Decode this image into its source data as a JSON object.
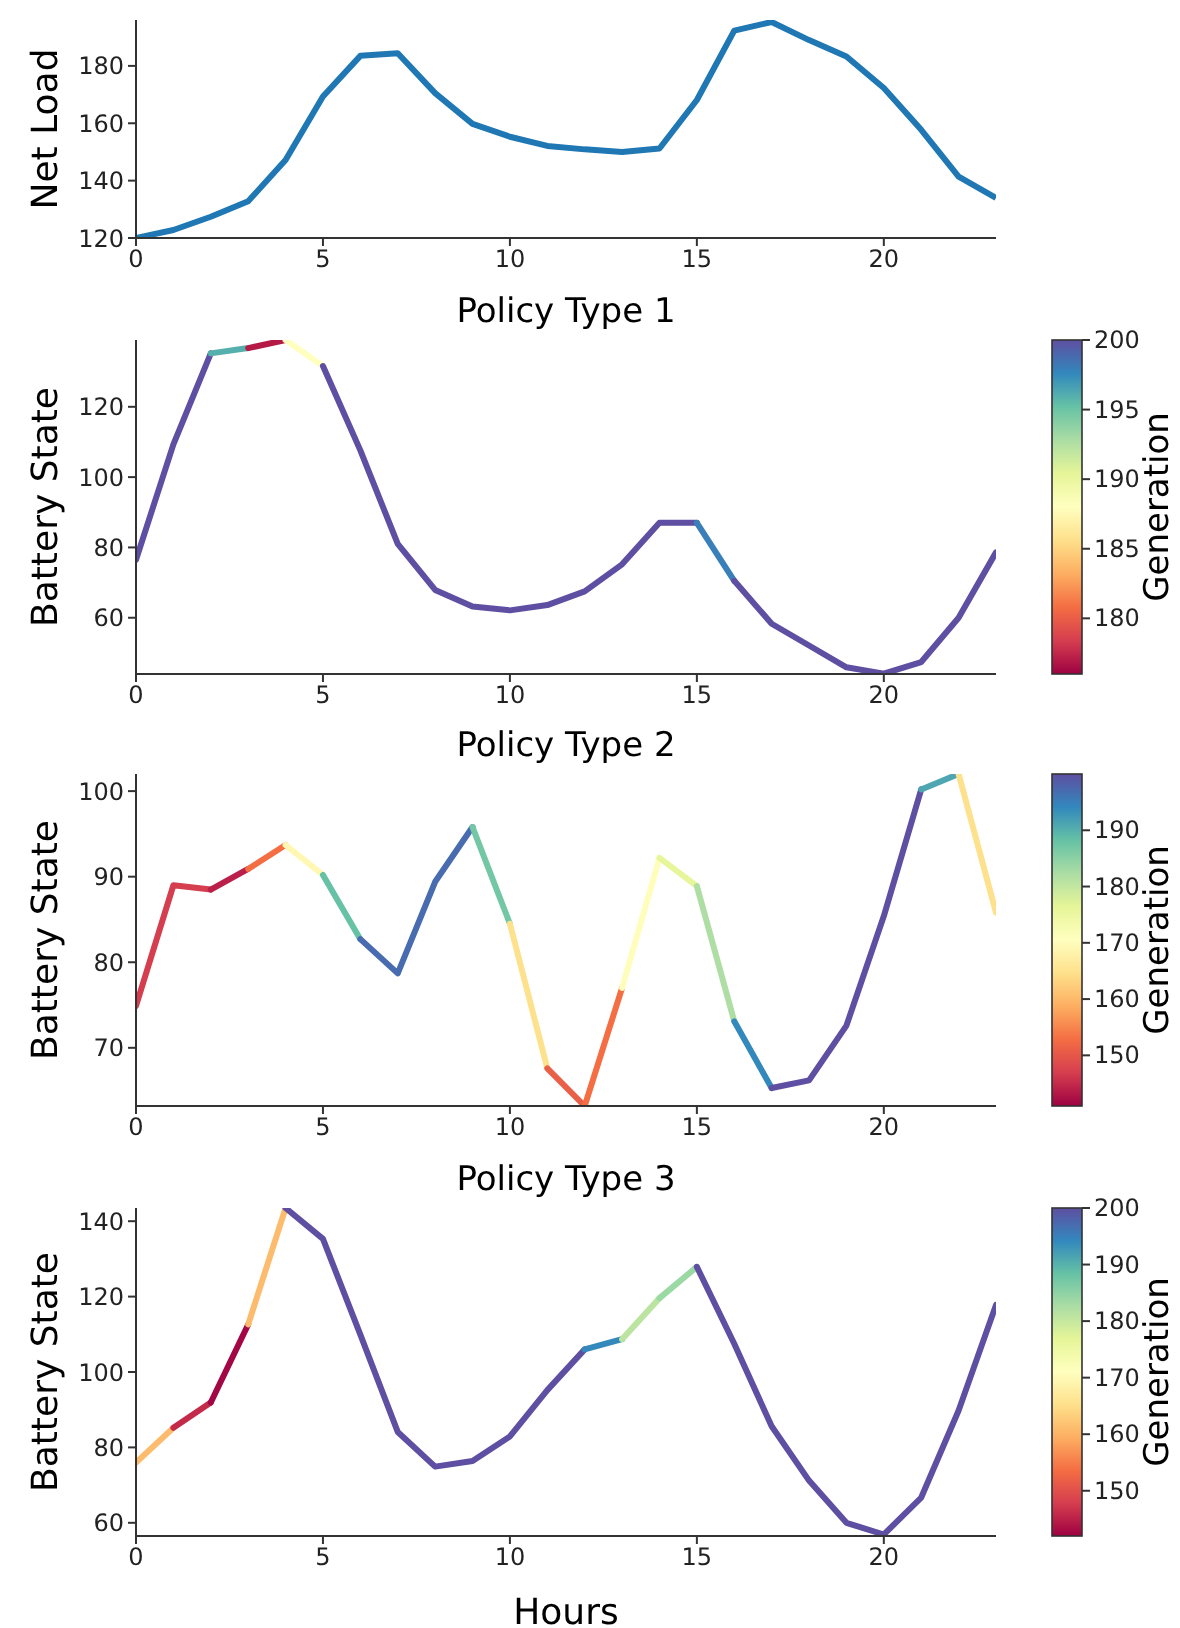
{
  "chart_data": [
    {
      "type": "line",
      "ylabel": "Net Load",
      "x": [
        0,
        1,
        2,
        3,
        4,
        5,
        6,
        7,
        8,
        9,
        10,
        11,
        12,
        13,
        14,
        15,
        16,
        17,
        18,
        19,
        20,
        21,
        22,
        23
      ],
      "xlim": [
        0,
        23
      ],
      "xticks": [
        0,
        5,
        10,
        15,
        20
      ],
      "ylim": [
        120,
        196
      ],
      "yticks": [
        120,
        140,
        160,
        180
      ],
      "marker": "none",
      "line_style": "solid",
      "series": [
        {
          "color": "#1f77b4",
          "values": [
            120,
            122.8,
            127.4,
            132.8,
            147.2,
            169.3,
            183.5,
            184.4,
            170.5,
            159.8,
            155.3,
            152.1,
            150.9,
            150,
            151.2,
            168.1,
            192.3,
            195.3,
            189,
            183.3,
            172.3,
            157.7,
            141.4,
            134
          ]
        }
      ]
    },
    {
      "type": "line",
      "title": "Policy Type 1",
      "ylabel": "Battery State",
      "clabel": "Generation",
      "xlim": [
        0,
        23
      ],
      "xticks": [
        0,
        5,
        10,
        15,
        20
      ],
      "ylim": [
        44,
        139
      ],
      "yticks": [
        60,
        80,
        100,
        120
      ],
      "clim": [
        176,
        200
      ],
      "cticks": [
        180,
        185,
        190,
        195,
        200
      ],
      "marker": "none",
      "line_style": "solid",
      "series": [
        {
          "color": "#5e4fa2",
          "x": [
            0,
            1,
            2
          ],
          "values": [
            76.5,
            109.3,
            135.2
          ]
        },
        {
          "color": "#55afad",
          "x": [
            2,
            3
          ],
          "values": [
            135.2,
            136.7
          ]
        },
        {
          "color": "#b51a47",
          "x": [
            3,
            4
          ],
          "values": [
            136.7,
            139
          ]
        },
        {
          "color": "#ffffbf",
          "x": [
            4,
            5
          ],
          "values": [
            139,
            131.6
          ]
        },
        {
          "color": "#5e4fa2",
          "x": [
            5,
            6,
            7,
            8,
            9,
            10,
            11,
            12,
            13,
            14,
            15
          ],
          "values": [
            131.6,
            107.6,
            81,
            67.9,
            63.2,
            62.1,
            63.6,
            67.5,
            75.2,
            87,
            87
          ]
        },
        {
          "color": "#397fb9",
          "x": [
            15,
            16
          ],
          "values": [
            87,
            70.5
          ]
        },
        {
          "color": "#5e4fa2",
          "x": [
            16,
            17,
            18,
            19,
            20,
            21,
            22,
            23
          ],
          "values": [
            70.5,
            58.3,
            52.1,
            45.9,
            44.1,
            47.4,
            60,
            78.6
          ]
        }
      ]
    },
    {
      "type": "line",
      "title": "Policy Type 2",
      "ylabel": "Battery State",
      "clabel": "Generation",
      "xlim": [
        0,
        23
      ],
      "xticks": [
        0,
        5,
        10,
        15,
        20
      ],
      "ylim": [
        63.2,
        102
      ],
      "yticks": [
        70,
        80,
        90,
        100
      ],
      "clim": [
        141,
        200
      ],
      "cticks": [
        150,
        160,
        170,
        180,
        190
      ],
      "marker": "none",
      "line_style": "solid",
      "series": [
        {
          "color": "#d53e4f",
          "x": [
            0,
            1,
            2
          ],
          "values": [
            74.9,
            89,
            88.5
          ]
        },
        {
          "color": "#ba2049",
          "x": [
            2,
            3
          ],
          "values": [
            88.5,
            90.9
          ]
        },
        {
          "color": "#f46d43",
          "x": [
            3,
            4
          ],
          "values": [
            90.9,
            93.7
          ]
        },
        {
          "color": "#fff7b2",
          "x": [
            4,
            5
          ],
          "values": [
            93.7,
            90.2
          ]
        },
        {
          "color": "#67c2a5",
          "x": [
            5,
            6
          ],
          "values": [
            90.2,
            82.7
          ]
        },
        {
          "color": "#486caf",
          "x": [
            6,
            7,
            8,
            9
          ],
          "values": [
            82.7,
            78.7,
            89.4,
            95.8
          ]
        },
        {
          "color": "#74c7a5",
          "x": [
            9,
            10
          ],
          "values": [
            95.8,
            84.5
          ]
        },
        {
          "color": "#fee18d",
          "x": [
            10,
            11
          ],
          "values": [
            84.5,
            67.6
          ]
        },
        {
          "color": "#ea5f47",
          "x": [
            11,
            12
          ],
          "values": [
            67.6,
            63.2
          ]
        },
        {
          "color": "#f46d43",
          "x": [
            12,
            13
          ],
          "values": [
            63.2,
            77
          ]
        },
        {
          "color": "#fffdbc",
          "x": [
            13,
            14
          ],
          "values": [
            77,
            92.2
          ]
        },
        {
          "color": "#e8f69b",
          "x": [
            14,
            15
          ],
          "values": [
            92.2,
            88.9
          ]
        },
        {
          "color": "#aedea3",
          "x": [
            15,
            16
          ],
          "values": [
            88.9,
            73.1
          ]
        },
        {
          "color": "#3489bc",
          "x": [
            16,
            17
          ],
          "values": [
            73.1,
            65.3
          ]
        },
        {
          "color": "#5e4fa2",
          "x": [
            17,
            18,
            19,
            20,
            21
          ],
          "values": [
            65.3,
            66.2,
            72.6,
            85.4,
            100.2
          ]
        },
        {
          "color": "#4ea6b2",
          "x": [
            21,
            22
          ],
          "values": [
            100.2,
            102
          ]
        },
        {
          "color": "#fee18d",
          "x": [
            22,
            23
          ],
          "values": [
            102,
            85.8
          ]
        }
      ]
    },
    {
      "type": "line",
      "title": "Policy Type 3",
      "xlabel": "Hours",
      "ylabel": "Battery State",
      "clabel": "Generation",
      "xlim": [
        0,
        23
      ],
      "xticks": [
        0,
        5,
        10,
        15,
        20
      ],
      "ylim": [
        56.5,
        143.5
      ],
      "yticks": [
        60,
        80,
        100,
        120,
        140
      ],
      "clim": [
        142,
        200
      ],
      "cticks": [
        150,
        160,
        170,
        180,
        190,
        200
      ],
      "marker": "none",
      "line_style": "solid",
      "series": [
        {
          "color": "#fdbc6d",
          "x": [
            0,
            1
          ],
          "values": [
            76,
            85.2
          ]
        },
        {
          "color": "#c42b4b",
          "x": [
            1,
            2
          ],
          "values": [
            85.2,
            91.9
          ]
        },
        {
          "color": "#a30644",
          "x": [
            2,
            3
          ],
          "values": [
            91.9,
            112.6
          ]
        },
        {
          "color": "#fdbc6d",
          "x": [
            3,
            4
          ],
          "values": [
            112.6,
            143.5
          ]
        },
        {
          "color": "#5e4fa2",
          "x": [
            4,
            5,
            6,
            7,
            8,
            9,
            10,
            11,
            12
          ],
          "values": [
            143.5,
            135.3,
            109.9,
            84.1,
            74.9,
            76.4,
            82.9,
            95.2,
            106
          ]
        },
        {
          "color": "#3489bc",
          "x": [
            12,
            13
          ],
          "values": [
            106,
            108.7
          ]
        },
        {
          "color": "#bbe4a0",
          "x": [
            13,
            14
          ],
          "values": [
            108.7,
            119.6
          ]
        },
        {
          "color": "#9ad8a4",
          "x": [
            14,
            15
          ],
          "values": [
            119.6,
            127.9
          ]
        },
        {
          "color": "#5e4fa2",
          "x": [
            15,
            16,
            17,
            18,
            19,
            20,
            21,
            22,
            23
          ],
          "values": [
            127.9,
            107.5,
            85.6,
            71.2,
            60,
            56.9,
            66.7,
            89.8,
            117.8
          ]
        }
      ]
    }
  ]
}
